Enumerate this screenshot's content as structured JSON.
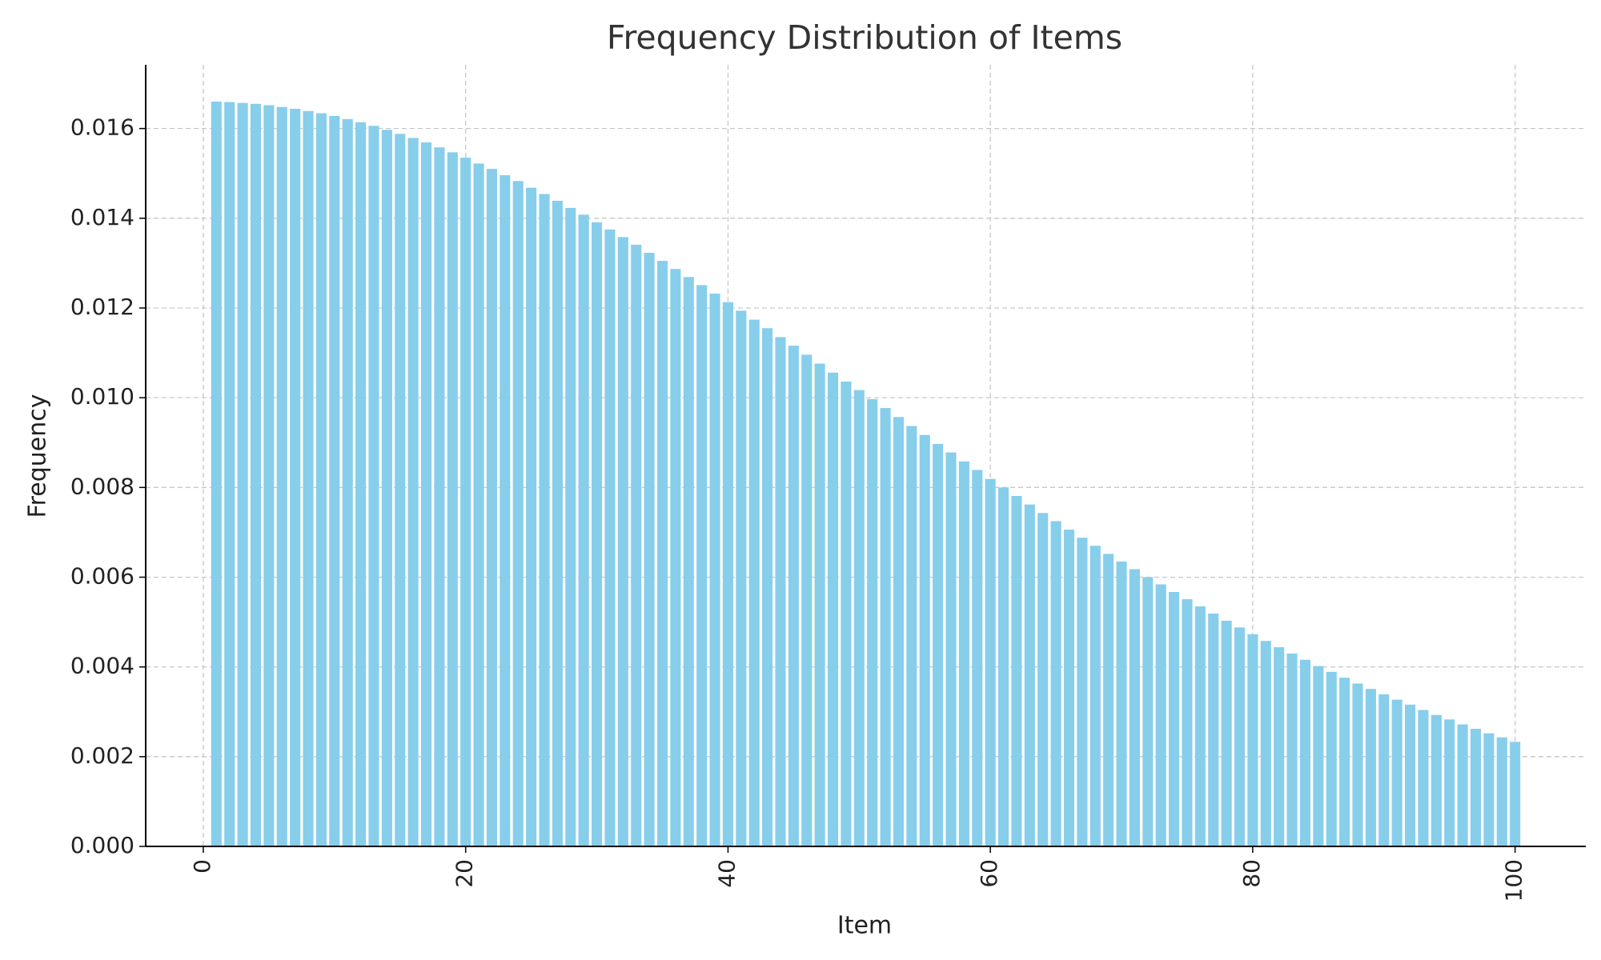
{
  "chart_data": {
    "type": "bar",
    "title": "Frequency Distribution of Items",
    "x_label": "Item",
    "y_label": "Frequency",
    "x": [
      1,
      2,
      3,
      4,
      5,
      6,
      7,
      8,
      9,
      10,
      11,
      12,
      13,
      14,
      15,
      16,
      17,
      18,
      19,
      20,
      21,
      22,
      23,
      24,
      25,
      26,
      27,
      28,
      29,
      30,
      31,
      32,
      33,
      34,
      35,
      36,
      37,
      38,
      39,
      40,
      41,
      42,
      43,
      44,
      45,
      46,
      47,
      48,
      49,
      50,
      51,
      52,
      53,
      54,
      55,
      56,
      57,
      58,
      59,
      60,
      61,
      62,
      63,
      64,
      65,
      66,
      67,
      68,
      69,
      70,
      71,
      72,
      73,
      74,
      75,
      76,
      77,
      78,
      79,
      80,
      81,
      82,
      83,
      84,
      85,
      86,
      87,
      88,
      89,
      90,
      91,
      92,
      93,
      94,
      95,
      96,
      97,
      98,
      99,
      100
    ],
    "values": [
      0.0166,
      0.01659,
      0.01657,
      0.01655,
      0.01652,
      0.01648,
      0.01644,
      0.01639,
      0.01634,
      0.01628,
      0.01621,
      0.01614,
      0.01606,
      0.01597,
      0.01588,
      0.01579,
      0.01569,
      0.01558,
      0.01547,
      0.01535,
      0.01522,
      0.0151,
      0.01496,
      0.01483,
      0.01468,
      0.01454,
      0.01439,
      0.01423,
      0.01408,
      0.01391,
      0.01375,
      0.01358,
      0.01341,
      0.01323,
      0.01305,
      0.01287,
      0.01269,
      0.01251,
      0.01232,
      0.01213,
      0.01194,
      0.01174,
      0.01155,
      0.01135,
      0.01116,
      0.01096,
      0.01076,
      0.01056,
      0.01036,
      0.01017,
      0.00997,
      0.00977,
      0.00957,
      0.00937,
      0.00917,
      0.00897,
      0.00878,
      0.00858,
      0.00839,
      0.00819,
      0.008,
      0.00781,
      0.00762,
      0.00743,
      0.00725,
      0.00706,
      0.00688,
      0.0067,
      0.00652,
      0.00635,
      0.00618,
      0.006,
      0.00584,
      0.00567,
      0.00551,
      0.00535,
      0.00519,
      0.00503,
      0.00488,
      0.00473,
      0.00458,
      0.00444,
      0.0043,
      0.00416,
      0.00402,
      0.00389,
      0.00376,
      0.00363,
      0.00351,
      0.00339,
      0.00327,
      0.00316,
      0.00304,
      0.00293,
      0.00283,
      0.00272,
      0.00262,
      0.00252,
      0.00243,
      0.00233
    ],
    "color": "#87ceeb",
    "xlim": [
      -4.39,
      105.39
    ],
    "xticks": [
      0,
      20,
      40,
      60,
      80,
      100
    ],
    "ylim": [
      0,
      0.01742
    ],
    "yticks": [
      {
        "value": 0,
        "label": "0.000"
      },
      {
        "value": 0.002,
        "label": "0.002"
      },
      {
        "value": 0.004,
        "label": "0.004"
      },
      {
        "value": 0.006,
        "label": "0.006"
      },
      {
        "value": 0.008,
        "label": "0.008"
      },
      {
        "value": 0.01,
        "label": "0.010"
      },
      {
        "value": 0.012,
        "label": "0.012"
      },
      {
        "value": 0.014,
        "label": "0.014"
      },
      {
        "value": 0.016,
        "label": "0.016"
      }
    ],
    "grid": true
  }
}
